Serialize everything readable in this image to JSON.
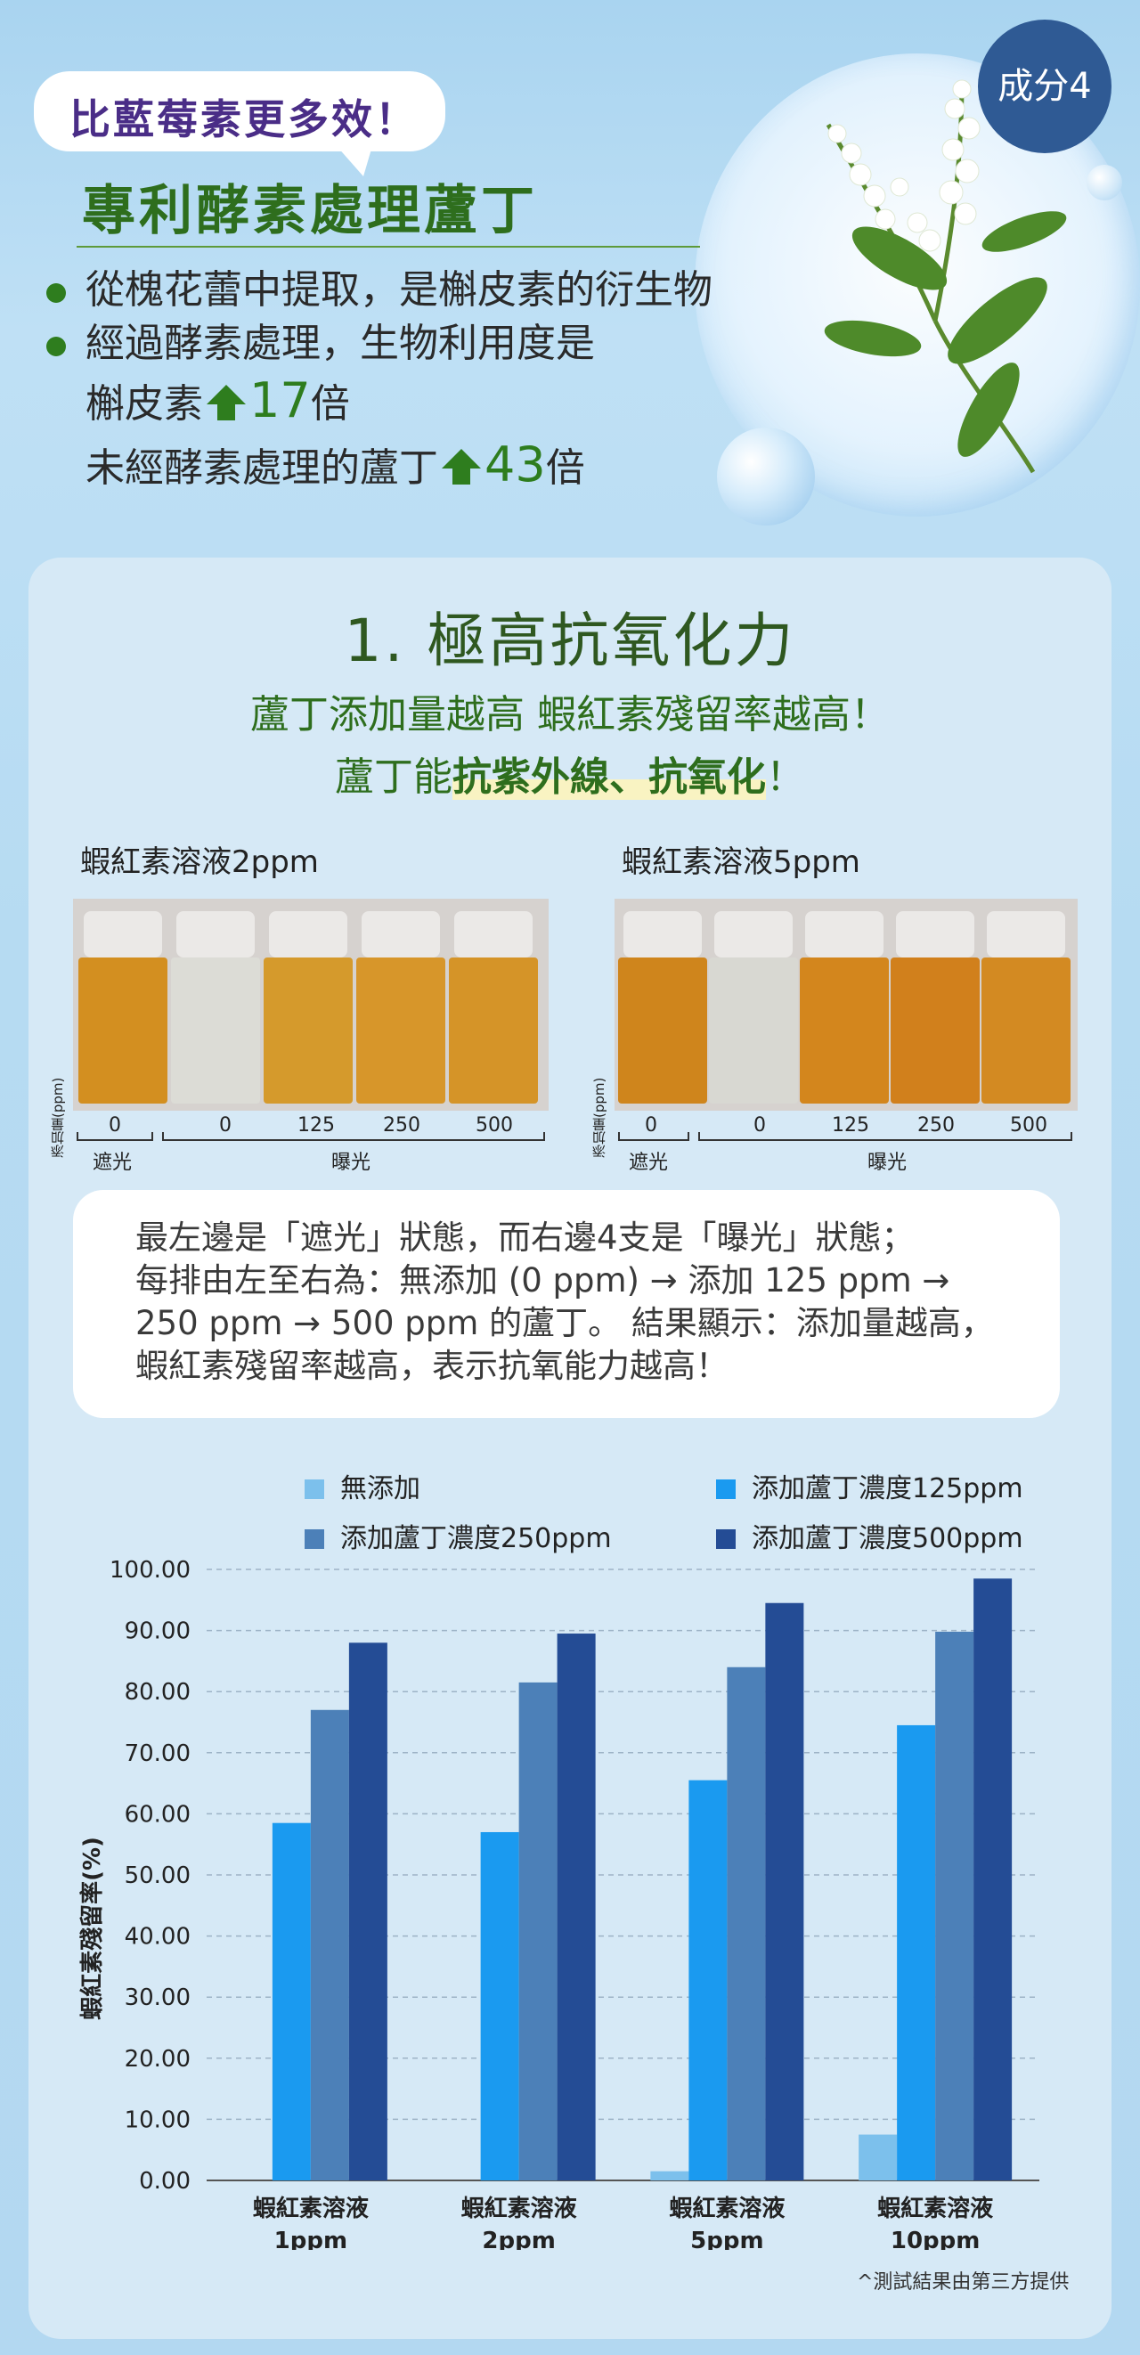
{
  "header": {
    "tag": "比藍莓素更多效！",
    "title": "專利酵素處理蘆丁",
    "badge": "成分4",
    "bullets": [
      {
        "text": "從槐花蕾中提取，是槲皮素的衍生物"
      },
      {
        "text": "經過酵素處理，生物利用度是",
        "line2_prefix": "槲皮素",
        "line2_value": "17",
        "line2_unit": "倍",
        "line3_prefix": "未經酵素處理的蘆丁",
        "line3_value": "43",
        "line3_unit": "倍"
      }
    ]
  },
  "section": {
    "title": "1. 極高抗氧化力",
    "subtitle1": "蘆丁添加量越高 蝦紅素殘留率越高！",
    "subtitle2_prefix": "蘆丁能",
    "subtitle2_highlight": "抗紫外線、抗氧化",
    "subtitle2_suffix": "！"
  },
  "photos": [
    {
      "title": "蝦紅素溶液2ppm",
      "side_label": "添加量(ppm)",
      "scale": [
        "0",
        "0",
        "125",
        "250",
        "500"
      ],
      "group_dark": "遮光",
      "group_light": "曝光",
      "vial_colors": [
        "#d38f20",
        "#dcdcd6",
        "#d59a2c",
        "#d7962a",
        "#d59428"
      ]
    },
    {
      "title": "蝦紅素溶液5ppm",
      "side_label": "添加量(ppm)",
      "scale": [
        "0",
        "0",
        "125",
        "250",
        "500"
      ],
      "group_dark": "遮光",
      "group_light": "曝光",
      "vial_colors": [
        "#cf851c",
        "#d8d8d2",
        "#d3861d",
        "#d1801c",
        "#d38a22"
      ]
    }
  ],
  "note": {
    "lines": [
      "最左邊是「遮光」狀態，而右邊4支是「曝光」狀態；",
      "每排由左至右為：無添加 (0 ppm) → 添加 125 ppm →",
      "250 ppm → 500 ppm 的蘆丁。 結果顯示：添加量越高，",
      "蝦紅素殘留率越高，表示抗氧能力越高！"
    ]
  },
  "chart_data": {
    "type": "bar",
    "ylabel": "蝦紅素殘留率(%)",
    "ylim": [
      0,
      100
    ],
    "yticks": [
      "0.00",
      "10.00",
      "20.00",
      "30.00",
      "40.00",
      "50.00",
      "60.00",
      "70.00",
      "80.00",
      "90.00",
      "100.00"
    ],
    "categories": [
      {
        "line1": "蝦紅素溶液",
        "line2": "1ppm"
      },
      {
        "line1": "蝦紅素溶液",
        "line2": "2ppm"
      },
      {
        "line1": "蝦紅素溶液",
        "line2": "5ppm"
      },
      {
        "line1": "蝦紅素溶液",
        "line2": "10ppm"
      }
    ],
    "series": [
      {
        "name": "無添加",
        "color": "#7cc0ec",
        "values": [
          0,
          0,
          1.5,
          7.5
        ]
      },
      {
        "name": "添加蘆丁濃度125ppm",
        "color": "#1a9af0",
        "values": [
          58.5,
          57,
          65.5,
          74.5
        ]
      },
      {
        "name": "添加蘆丁濃度250ppm",
        "color": "#4c80b8",
        "values": [
          77,
          81.5,
          84,
          89.8
        ]
      },
      {
        "name": "添加蘆丁濃度500ppm",
        "color": "#244c95",
        "values": [
          88,
          89.5,
          94.5,
          98.5
        ]
      }
    ],
    "grid": true,
    "legend": "top"
  },
  "footnote": "^測試結果由第三方提供"
}
